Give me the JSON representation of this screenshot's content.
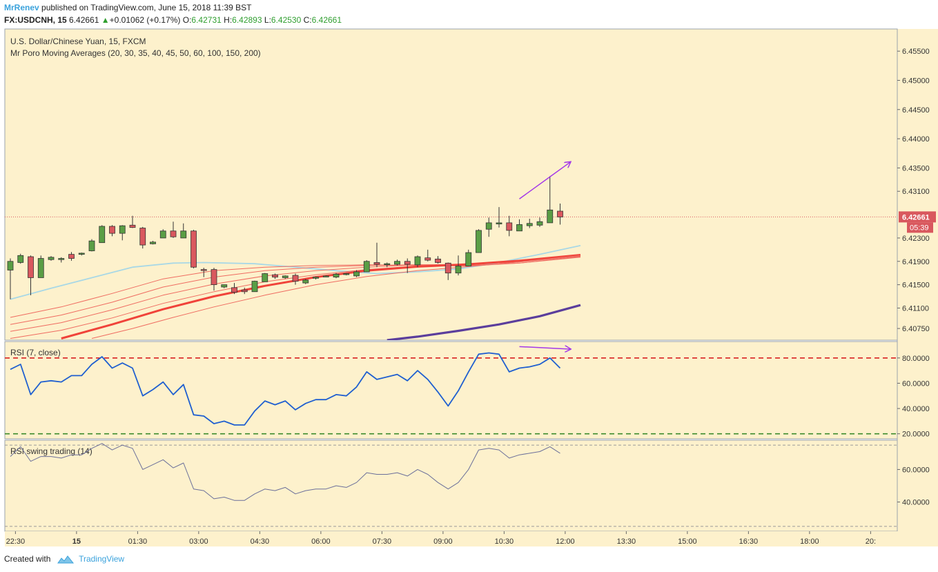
{
  "header": {
    "author": "MrRenev",
    "published_text": "published on TradingView.com, June 15, 2018 11:39 BST",
    "symbol": "FX:USDCNH, 15",
    "last": "6.42661",
    "change": "+0.01062 (+0.17%)",
    "open_label": "O:",
    "open": "6.42731",
    "high_label": "H:",
    "high": "6.42893",
    "low_label": "L:",
    "low": "6.42530",
    "close_label": "C:",
    "close": "6.42661"
  },
  "footer": {
    "created_with": "Created with",
    "brand": "TradingView"
  },
  "colors": {
    "background": "#fdf1cc",
    "bull": "#5a9e45",
    "bear": "#d9585e",
    "rsi_line": "#1f5fd0",
    "rsi_swing_line": "#6b6f9a",
    "upper_band": "#d92020",
    "lower_band": "#3a8a2a",
    "arrow": "#a338e8",
    "ma_light_blue": "#a8d8e6",
    "ma_purple": "#5b3e9c",
    "ma_red_thick": "#f0433a",
    "ma_red_thin": "#ef6b60"
  },
  "chart_data": [
    {
      "type": "candlestick",
      "title": "U.S. Dollar/Chinese Yuan, 15, FXCM",
      "subtitle": "Mr Poro Moving Averages (20, 30, 35, 40, 45, 50, 60, 100, 150, 200)",
      "y_ticks": [
        "6.45500",
        "6.45000",
        "6.44500",
        "6.44000",
        "6.43500",
        "6.43100",
        "6.42300",
        "6.41900",
        "6.41500",
        "6.41100",
        "6.40750"
      ],
      "ylim": [
        6.4055,
        6.4588
      ],
      "last_price_label": "6.42661",
      "countdown_label": "05:39",
      "x_ticks": [
        {
          "label": "22:30",
          "pos": 0.5
        },
        {
          "label": "15",
          "pos": 6.5
        },
        {
          "label": "01:30",
          "pos": 12.5
        },
        {
          "label": "03:00",
          "pos": 18.5
        },
        {
          "label": "04:30",
          "pos": 24.5
        },
        {
          "label": "06:00",
          "pos": 30.5
        },
        {
          "label": "07:30",
          "pos": 36.5
        },
        {
          "label": "09:00",
          "pos": 42.5
        },
        {
          "label": "10:30",
          "pos": 48.5
        },
        {
          "label": "12:00",
          "pos": 54.5
        },
        {
          "label": "13:30",
          "pos": 60.5
        },
        {
          "label": "15:00",
          "pos": 66.5
        },
        {
          "label": "16:30",
          "pos": 72.5
        },
        {
          "label": "18:00",
          "pos": 78.5
        },
        {
          "label": "20:",
          "pos": 84.5
        }
      ],
      "candles": [
        {
          "o": 6.4175,
          "h": 6.4195,
          "l": 6.4125,
          "c": 6.419
        },
        {
          "o": 6.4188,
          "h": 6.4203,
          "l": 6.4186,
          "c": 6.42
        },
        {
          "o": 6.4198,
          "h": 6.42,
          "l": 6.4132,
          "c": 6.4162
        },
        {
          "o": 6.4162,
          "h": 6.42,
          "l": 6.4162,
          "c": 6.4195
        },
        {
          "o": 6.4193,
          "h": 6.4199,
          "l": 6.4191,
          "c": 6.4197
        },
        {
          "o": 6.4193,
          "h": 6.4197,
          "l": 6.4188,
          "c": 6.4195
        },
        {
          "o": 6.4202,
          "h": 6.4206,
          "l": 6.4191,
          "c": 6.4195
        },
        {
          "o": 6.4202,
          "h": 6.4205,
          "l": 6.42,
          "c": 6.4204
        },
        {
          "o": 6.4208,
          "h": 6.4228,
          "l": 6.4207,
          "c": 6.4225
        },
        {
          "o": 6.4222,
          "h": 6.4252,
          "l": 6.4222,
          "c": 6.425
        },
        {
          "o": 6.425,
          "h": 6.4252,
          "l": 6.4233,
          "c": 6.4238
        },
        {
          "o": 6.4238,
          "h": 6.4252,
          "l": 6.4226,
          "c": 6.4251
        },
        {
          "o": 6.4252,
          "h": 6.4268,
          "l": 6.4247,
          "c": 6.4248
        },
        {
          "o": 6.4247,
          "h": 6.4249,
          "l": 6.4212,
          "c": 6.4218
        },
        {
          "o": 6.422,
          "h": 6.4225,
          "l": 6.4219,
          "c": 6.4223
        },
        {
          "o": 6.423,
          "h": 6.4245,
          "l": 6.423,
          "c": 6.4242
        },
        {
          "o": 6.4242,
          "h": 6.4258,
          "l": 6.423,
          "c": 6.4232
        },
        {
          "o": 6.423,
          "h": 6.4255,
          "l": 6.423,
          "c": 6.4242
        },
        {
          "o": 6.4242,
          "h": 6.4244,
          "l": 6.4178,
          "c": 6.418
        },
        {
          "o": 6.4176,
          "h": 6.4179,
          "l": 6.4163,
          "c": 6.4175
        },
        {
          "o": 6.4176,
          "h": 6.4179,
          "l": 6.414,
          "c": 6.415
        },
        {
          "o": 6.4146,
          "h": 6.415,
          "l": 6.4144,
          "c": 6.415
        },
        {
          "o": 6.4145,
          "h": 6.4153,
          "l": 6.4134,
          "c": 6.4137
        },
        {
          "o": 6.4141,
          "h": 6.4145,
          "l": 6.4134,
          "c": 6.4138
        },
        {
          "o": 6.4138,
          "h": 6.4157,
          "l": 6.4138,
          "c": 6.4156
        },
        {
          "o": 6.4155,
          "h": 6.417,
          "l": 6.4155,
          "c": 6.4169
        },
        {
          "o": 6.4167,
          "h": 6.4169,
          "l": 6.416,
          "c": 6.4163
        },
        {
          "o": 6.4162,
          "h": 6.4166,
          "l": 6.416,
          "c": 6.4165
        },
        {
          "o": 6.4166,
          "h": 6.4169,
          "l": 6.415,
          "c": 6.4156
        },
        {
          "o": 6.4153,
          "h": 6.416,
          "l": 6.4151,
          "c": 6.4158
        },
        {
          "o": 6.4161,
          "h": 6.4164,
          "l": 6.4159,
          "c": 6.4163
        },
        {
          "o": 6.4164,
          "h": 6.4166,
          "l": 6.4163,
          "c": 6.4165
        },
        {
          "o": 6.4163,
          "h": 6.417,
          "l": 6.4161,
          "c": 6.4168
        },
        {
          "o": 6.4168,
          "h": 6.417,
          "l": 6.4166,
          "c": 6.4169
        },
        {
          "o": 6.4165,
          "h": 6.4175,
          "l": 6.4163,
          "c": 6.4172
        },
        {
          "o": 6.4172,
          "h": 6.4192,
          "l": 6.4172,
          "c": 6.419
        },
        {
          "o": 6.4188,
          "h": 6.4222,
          "l": 6.418,
          "c": 6.4185
        },
        {
          "o": 6.4185,
          "h": 6.4188,
          "l": 6.418,
          "c": 6.4186
        },
        {
          "o": 6.4185,
          "h": 6.4193,
          "l": 6.4183,
          "c": 6.419
        },
        {
          "o": 6.419,
          "h": 6.4195,
          "l": 6.417,
          "c": 6.4185
        },
        {
          "o": 6.4184,
          "h": 6.42,
          "l": 6.418,
          "c": 6.4198
        },
        {
          "o": 6.4196,
          "h": 6.421,
          "l": 6.419,
          "c": 6.4192
        },
        {
          "o": 6.4194,
          "h": 6.4199,
          "l": 6.4186,
          "c": 6.4188
        },
        {
          "o": 6.4187,
          "h": 6.4188,
          "l": 6.4158,
          "c": 6.417
        },
        {
          "o": 6.417,
          "h": 6.42,
          "l": 6.4166,
          "c": 6.4182
        },
        {
          "o": 6.4182,
          "h": 6.421,
          "l": 6.4182,
          "c": 6.4205
        },
        {
          "o": 6.4205,
          "h": 6.4245,
          "l": 6.4205,
          "c": 6.4243
        },
        {
          "o": 6.4245,
          "h": 6.4265,
          "l": 6.4232,
          "c": 6.4256
        },
        {
          "o": 6.4254,
          "h": 6.4283,
          "l": 6.4248,
          "c": 6.4256
        },
        {
          "o": 6.4256,
          "h": 6.4268,
          "l": 6.4233,
          "c": 6.4243
        },
        {
          "o": 6.4242,
          "h": 6.4262,
          "l": 6.4242,
          "c": 6.4253
        },
        {
          "o": 6.4251,
          "h": 6.4263,
          "l": 6.4247,
          "c": 6.4255
        },
        {
          "o": 6.4252,
          "h": 6.4265,
          "l": 6.4249,
          "c": 6.4258
        },
        {
          "o": 6.4256,
          "h": 6.4336,
          "l": 6.4256,
          "c": 6.4278
        },
        {
          "o": 6.4276,
          "h": 6.4289,
          "l": 6.4253,
          "c": 6.4266
        }
      ],
      "moving_averages": [
        {
          "color": "#a8d8e6",
          "width": 1.8,
          "values": [
            [
              0,
              6.4125
            ],
            [
              4,
              6.4144
            ],
            [
              8,
              6.4162
            ],
            [
              12,
              6.418
            ],
            [
              16,
              6.4187
            ],
            [
              19,
              6.4188
            ],
            [
              24,
              6.4186
            ],
            [
              28,
              6.418
            ],
            [
              32,
              6.4174
            ],
            [
              36,
              6.4169
            ],
            [
              40,
              6.4172
            ],
            [
              44,
              6.4177
            ],
            [
              48,
              6.4188
            ],
            [
              52,
              6.4202
            ],
            [
              56,
              6.4217
            ]
          ]
        },
        {
          "color": "#ef6b60",
          "width": 1,
          "values": [
            [
              0,
              6.4094
            ],
            [
              5,
              6.4112
            ],
            [
              10,
              6.4135
            ],
            [
              15,
              6.416
            ],
            [
              20,
              6.4174
            ],
            [
              25,
              6.418
            ],
            [
              30,
              6.4183
            ],
            [
              35,
              6.4184
            ],
            [
              40,
              6.4183
            ],
            [
              45,
              6.4182
            ],
            [
              50,
              6.4187
            ],
            [
              56,
              6.4197
            ]
          ]
        },
        {
          "color": "#ef6b60",
          "width": 1,
          "values": [
            [
              0,
              6.4082
            ],
            [
              5,
              6.4098
            ],
            [
              10,
              6.412
            ],
            [
              15,
              6.4146
            ],
            [
              20,
              6.4163
            ],
            [
              25,
              6.4174
            ],
            [
              30,
              6.418
            ],
            [
              35,
              6.4183
            ],
            [
              40,
              6.4184
            ],
            [
              45,
              6.4183
            ],
            [
              50,
              6.4187
            ],
            [
              56,
              6.4198
            ]
          ]
        },
        {
          "color": "#ef6b60",
          "width": 1,
          "values": [
            [
              0,
              6.407
            ],
            [
              5,
              6.4085
            ],
            [
              10,
              6.4107
            ],
            [
              15,
              6.4132
            ],
            [
              20,
              6.4151
            ],
            [
              25,
              6.4165
            ],
            [
              30,
              6.4174
            ],
            [
              35,
              6.418
            ],
            [
              40,
              6.4184
            ],
            [
              45,
              6.4185
            ],
            [
              50,
              6.4189
            ],
            [
              56,
              6.4199
            ]
          ]
        },
        {
          "color": "#ef6b60",
          "width": 1,
          "values": [
            [
              0,
              6.4058
            ],
            [
              5,
              6.4072
            ],
            [
              10,
              6.4093
            ],
            [
              15,
              6.4118
            ],
            [
              20,
              6.4138
            ],
            [
              25,
              6.4155
            ],
            [
              30,
              6.4167
            ],
            [
              35,
              6.4176
            ],
            [
              40,
              6.4182
            ],
            [
              45,
              6.4185
            ],
            [
              50,
              6.419
            ],
            [
              56,
              6.42
            ]
          ]
        },
        {
          "color": "#f0433a",
          "width": 3,
          "values": [
            [
              5,
              6.4058
            ],
            [
              10,
              6.4082
            ],
            [
              15,
              6.4108
            ],
            [
              20,
              6.413
            ],
            [
              25,
              6.4148
            ],
            [
              30,
              6.4163
            ],
            [
              35,
              6.4174
            ],
            [
              40,
              6.4181
            ],
            [
              45,
              6.4185
            ],
            [
              50,
              6.4191
            ],
            [
              56,
              6.4201
            ]
          ]
        },
        {
          "color": "#ef6b60",
          "width": 1,
          "values": [
            [
              8,
              6.4058
            ],
            [
              12,
              6.4075
            ],
            [
              16,
              6.4094
            ],
            [
              20,
              6.4112
            ],
            [
              25,
              6.4132
            ],
            [
              30,
              6.415
            ],
            [
              35,
              6.4164
            ],
            [
              40,
              6.4174
            ],
            [
              45,
              6.4181
            ],
            [
              50,
              6.4189
            ],
            [
              56,
              6.42
            ]
          ]
        },
        {
          "color": "#5b3e9c",
          "width": 3.2,
          "values": [
            [
              37,
              6.4055
            ],
            [
              40,
              6.4061
            ],
            [
              44,
              6.4071
            ],
            [
              48,
              6.4082
            ],
            [
              52,
              6.4096
            ],
            [
              56,
              6.4115
            ]
          ]
        }
      ],
      "arrows": [
        {
          "from": [
            50,
            6.4297
          ],
          "to": [
            55,
            6.436
          ]
        }
      ]
    },
    {
      "type": "line",
      "title": "RSI (7, close)",
      "y_ticks": [
        "80.0000",
        "60.0000",
        "40.0000",
        "20.0000"
      ],
      "ylim": [
        16,
        93
      ],
      "upper_band": 80,
      "lower_band": 20,
      "series": [
        {
          "values": [
            71,
            75,
            51,
            61,
            62,
            61,
            66,
            66,
            75,
            81,
            72,
            76,
            72,
            50,
            55,
            61,
            51,
            59,
            35,
            34,
            28,
            30,
            27,
            27,
            38,
            46,
            43,
            46,
            39,
            44,
            47,
            47,
            51,
            50,
            57,
            69,
            63,
            65,
            67,
            62,
            70,
            63,
            53,
            42,
            54,
            69,
            83,
            84,
            83,
            69,
            72,
            73,
            75,
            80,
            72
          ]
        }
      ],
      "arrows": [
        {
          "from": [
            50,
            89
          ],
          "to": [
            55,
            87
          ]
        }
      ]
    },
    {
      "type": "line",
      "title": "RSI swing trading (14)",
      "y_ticks": [
        "60.0000",
        "40.0000"
      ],
      "ylim": [
        22,
        78
      ],
      "upper_band": 75,
      "lower_band": 25,
      "series": [
        {
          "values": [
            68,
            74,
            65,
            68,
            68,
            67,
            69,
            69,
            73,
            76,
            72,
            75,
            73,
            60,
            63,
            66,
            61,
            64,
            48,
            47,
            42,
            43,
            41,
            41,
            45,
            48,
            47,
            49,
            45,
            47,
            48,
            48,
            50,
            49,
            52,
            58,
            57,
            57,
            58,
            56,
            60,
            57,
            52,
            48,
            52,
            60,
            72,
            73,
            72,
            67,
            69,
            70,
            71,
            74,
            70
          ]
        }
      ]
    }
  ]
}
